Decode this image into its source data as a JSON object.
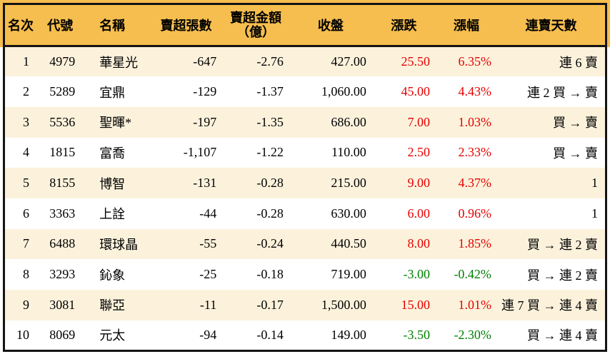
{
  "colors": {
    "header_bg": "#F6BE4E",
    "row_alt_bg": "#FCF2DC",
    "row_bg": "#FFFFFF",
    "up": "#E60000",
    "down": "#008000",
    "border": "#141414",
    "text": "#000000"
  },
  "chart_data": {
    "type": "table",
    "title": "",
    "columns": [
      {
        "key": "rank",
        "label": "名次"
      },
      {
        "key": "code",
        "label": "代號"
      },
      {
        "key": "name",
        "label": "名稱"
      },
      {
        "key": "sell_volume",
        "label": "賣超張數"
      },
      {
        "key": "sell_amount",
        "label": "賣超金額",
        "sublabel": "（億）"
      },
      {
        "key": "close",
        "label": "收盤"
      },
      {
        "key": "change",
        "label": "漲跌"
      },
      {
        "key": "change_pct",
        "label": "漲幅"
      },
      {
        "key": "streak",
        "label": "連賣天數"
      }
    ],
    "rows": [
      {
        "rank": "1",
        "code": "4979",
        "name": "華星光",
        "sell_volume": "-647",
        "sell_amount": "-2.76",
        "close": "427.00",
        "change": "25.50",
        "change_pct": "6.35%",
        "direction": "up",
        "streak": "連 6 賣"
      },
      {
        "rank": "2",
        "code": "5289",
        "name": "宜鼎",
        "sell_volume": "-129",
        "sell_amount": "-1.37",
        "close": "1,060.00",
        "change": "45.00",
        "change_pct": "4.43%",
        "direction": "up",
        "streak": "連 2 買 → 賣"
      },
      {
        "rank": "3",
        "code": "5536",
        "name": "聖暉*",
        "sell_volume": "-197",
        "sell_amount": "-1.35",
        "close": "686.00",
        "change": "7.00",
        "change_pct": "1.03%",
        "direction": "up",
        "streak": "買 → 賣"
      },
      {
        "rank": "4",
        "code": "1815",
        "name": "富喬",
        "sell_volume": "-1,107",
        "sell_amount": "-1.22",
        "close": "110.00",
        "change": "2.50",
        "change_pct": "2.33%",
        "direction": "up",
        "streak": "買 → 賣"
      },
      {
        "rank": "5",
        "code": "8155",
        "name": "博智",
        "sell_volume": "-131",
        "sell_amount": "-0.28",
        "close": "215.00",
        "change": "9.00",
        "change_pct": "4.37%",
        "direction": "up",
        "streak": "1"
      },
      {
        "rank": "6",
        "code": "3363",
        "name": "上詮",
        "sell_volume": "-44",
        "sell_amount": "-0.28",
        "close": "630.00",
        "change": "6.00",
        "change_pct": "0.96%",
        "direction": "up",
        "streak": "1"
      },
      {
        "rank": "7",
        "code": "6488",
        "name": "環球晶",
        "sell_volume": "-55",
        "sell_amount": "-0.24",
        "close": "440.50",
        "change": "8.00",
        "change_pct": "1.85%",
        "direction": "up",
        "streak": "買 → 連 2 賣"
      },
      {
        "rank": "8",
        "code": "3293",
        "name": "鈊象",
        "sell_volume": "-25",
        "sell_amount": "-0.18",
        "close": "719.00",
        "change": "-3.00",
        "change_pct": "-0.42%",
        "direction": "down",
        "streak": "買 → 連 2 賣"
      },
      {
        "rank": "9",
        "code": "3081",
        "name": "聯亞",
        "sell_volume": "-11",
        "sell_amount": "-0.17",
        "close": "1,500.00",
        "change": "15.00",
        "change_pct": "1.01%",
        "direction": "up",
        "streak": "連 7 買 → 連 4 賣"
      },
      {
        "rank": "10",
        "code": "8069",
        "name": "元太",
        "sell_volume": "-94",
        "sell_amount": "-0.14",
        "close": "149.00",
        "change": "-3.50",
        "change_pct": "-2.30%",
        "direction": "down",
        "streak": "買 → 連 4 賣"
      }
    ]
  }
}
